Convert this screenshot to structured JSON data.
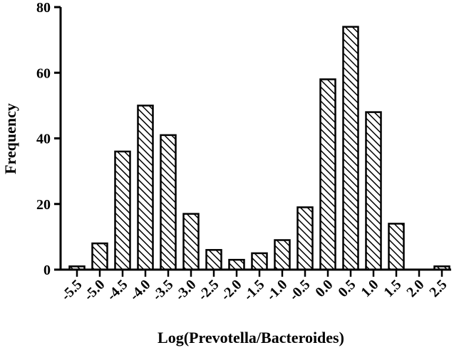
{
  "chart_data": {
    "type": "bar",
    "title": "",
    "xlabel": "Log(Prevotella/Bacteroides)",
    "ylabel": "Frequency",
    "categories": [
      "-5.5",
      "-5.0",
      "-4.5",
      "-4.0",
      "-3.5",
      "-3.0",
      "-2.5",
      "-2.0",
      "-1.5",
      "-1.0",
      "-0.5",
      "0.0",
      "0.5",
      "1.0",
      "1.5",
      "2.0",
      "2.5"
    ],
    "values": [
      1,
      8,
      36,
      50,
      41,
      17,
      6,
      3,
      5,
      9,
      19,
      58,
      74,
      48,
      14,
      0,
      1
    ],
    "ylim": [
      0,
      80
    ],
    "yticks": [
      "0",
      "20",
      "40",
      "60",
      "80"
    ],
    "grid": false,
    "bar_fill": "diagonal-hatch",
    "colors": {
      "bar_stroke": "#000000",
      "hatch": "#000000",
      "background": "#ffffff"
    }
  }
}
